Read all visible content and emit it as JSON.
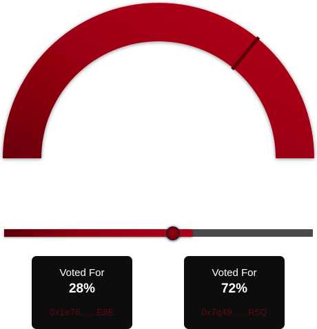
{
  "gauge": {
    "value_fraction": 0.72,
    "colors": {
      "start": "#6a0008",
      "mid": "#9a0012",
      "end": "#b5001c",
      "marker": "#5a0008"
    }
  },
  "slider": {
    "value_fraction": 0.545,
    "fill_fraction": 0.61,
    "fill_color": "#9a0012",
    "track_color": "#4a4a4a"
  },
  "cards": [
    {
      "label": "Voted For",
      "percent": "28%",
      "address": "0x1e76......E8E"
    },
    {
      "label": "Voted For",
      "percent": "72%",
      "address": "0x7q49......R5Q"
    }
  ]
}
